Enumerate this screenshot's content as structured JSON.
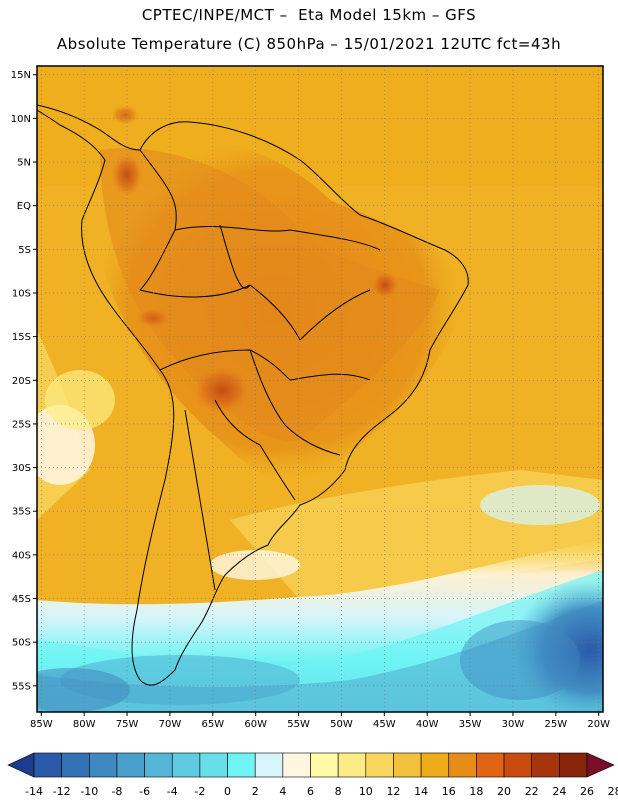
{
  "header": {
    "line1": "CPTEC/INPE/MCT –  Eta Model 15km – GFS",
    "line2": "Absolute Temperature (C) 850hPa – 15/01/2021 12UTC fct=43h"
  },
  "map": {
    "lat_labels": [
      "15N",
      "10N",
      "5N",
      "EQ",
      "5S",
      "10S",
      "15S",
      "20S",
      "25S",
      "30S",
      "35S",
      "40S",
      "45S",
      "50S",
      "55S"
    ],
    "lon_labels": [
      "85W",
      "80W",
      "75W",
      "70W",
      "65W",
      "60W",
      "55W",
      "50W",
      "45W",
      "40W",
      "35W",
      "30W",
      "25W",
      "20W"
    ],
    "lat_range": [
      -58,
      16
    ],
    "lon_range": [
      -85.5,
      -19.5
    ],
    "grid": true
  },
  "colorbar": {
    "labels": [
      "-14",
      "-12",
      "-10",
      "-8",
      "-6",
      "-4",
      "-2",
      "0",
      "2",
      "4",
      "6",
      "8",
      "10",
      "12",
      "14",
      "16",
      "18",
      "20",
      "22",
      "24",
      "26",
      "28"
    ],
    "colors": [
      "#1f3b8e",
      "#2a5aa8",
      "#3272b4",
      "#3f88c0",
      "#4aa0cc",
      "#55b5d6",
      "#5fcbe0",
      "#66dfe8",
      "#6ff3f3",
      "#d7f5fb",
      "#fff6e2",
      "#fffaa8",
      "#fcec85",
      "#f8d55c",
      "#f2c23c",
      "#eeab1a",
      "#e68d17",
      "#e06414",
      "#c84b10",
      "#a6350e",
      "#87240c",
      "#7a0f2a"
    ]
  }
}
